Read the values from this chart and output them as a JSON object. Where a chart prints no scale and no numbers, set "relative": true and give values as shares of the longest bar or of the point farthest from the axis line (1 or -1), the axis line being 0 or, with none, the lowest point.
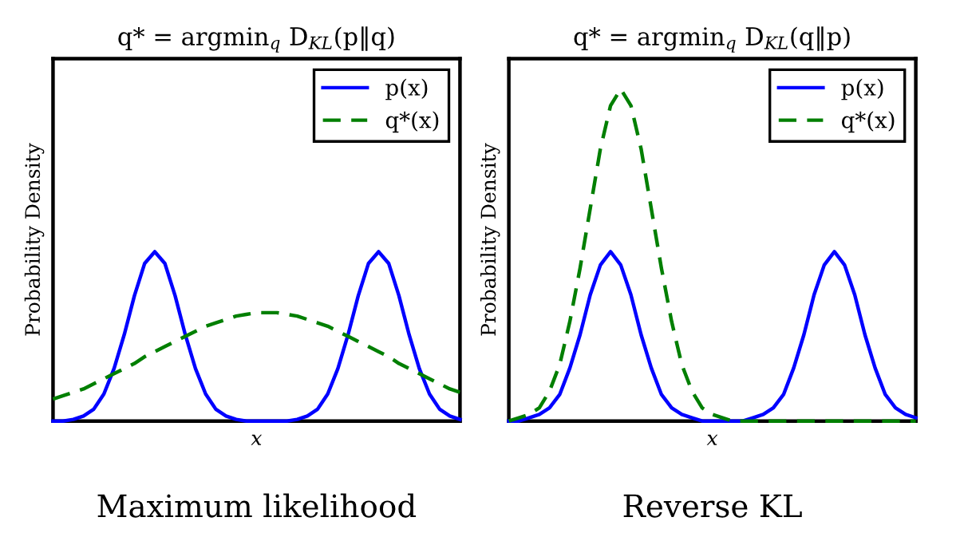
{
  "chart_data": [
    {
      "type": "line",
      "title": "q* = argmin$_{q}$ D$_{KL}$(p‖q)",
      "xlabel": "x",
      "ylabel": "Probability Density",
      "annotations": [
        "Maximum likelihood"
      ],
      "relative": true,
      "legend": "top right",
      "tick_labels": false,
      "categories": [
        null,
        null,
        null,
        null,
        null,
        null,
        null,
        null,
        null,
        null,
        null,
        null,
        null,
        null,
        null,
        null,
        null,
        null,
        null,
        null,
        null,
        null,
        null,
        null,
        null,
        null,
        null,
        null,
        null,
        null,
        null,
        null,
        null,
        null,
        null,
        null,
        null,
        null,
        null,
        null,
        null
      ],
      "series": [
        {
          "name": "p(x)",
          "color": "#0000ff",
          "line_style": "solid",
          "values": [
            0,
            0,
            0.01,
            0.03,
            0.07,
            0.16,
            0.31,
            0.51,
            0.74,
            0.93,
            1,
            0.93,
            0.74,
            0.51,
            0.31,
            0.16,
            0.07,
            0.03,
            0.01,
            0,
            0,
            0,
            0,
            0,
            0.01,
            0.03,
            0.07,
            0.16,
            0.31,
            0.51,
            0.74,
            0.93,
            1,
            0.93,
            0.74,
            0.51,
            0.31,
            0.16,
            0.07,
            0.03,
            0.01
          ]
        },
        {
          "name": "q*(x)",
          "color": "#007f00",
          "line_style": "dashed",
          "values": [
            0.13,
            0.15,
            0.17,
            0.19,
            0.22,
            0.25,
            0.28,
            0.31,
            0.34,
            0.38,
            0.41,
            0.44,
            0.47,
            0.5,
            0.53,
            0.56,
            0.58,
            0.6,
            0.62,
            0.63,
            0.64,
            0.64,
            0.64,
            0.63,
            0.62,
            0.6,
            0.58,
            0.56,
            0.53,
            0.5,
            0.47,
            0.44,
            0.41,
            0.38,
            0.34,
            0.31,
            0.28,
            0.25,
            0.22,
            0.19,
            0.17
          ]
        }
      ]
    },
    {
      "type": "line",
      "title": "q* = argmin$_{q}$ D$_{KL}$(q‖p)",
      "xlabel": "x",
      "ylabel": "Probability Density",
      "annotations": [
        "Reverse KL"
      ],
      "relative": true,
      "legend": "top right",
      "tick_labels": false,
      "categories": [
        null,
        null,
        null,
        null,
        null,
        null,
        null,
        null,
        null,
        null,
        null,
        null,
        null,
        null,
        null,
        null,
        null,
        null,
        null,
        null,
        null,
        null,
        null,
        null,
        null,
        null,
        null,
        null,
        null,
        null,
        null,
        null,
        null,
        null,
        null,
        null,
        null,
        null,
        null,
        null,
        null
      ],
      "series": [
        {
          "name": "p(x)",
          "color": "#0000ff",
          "line_style": "solid",
          "values": [
            0,
            0,
            0.01,
            0.02,
            0.04,
            0.08,
            0.16,
            0.26,
            0.38,
            0.47,
            0.51,
            0.47,
            0.38,
            0.26,
            0.16,
            0.08,
            0.04,
            0.02,
            0.01,
            0,
            0,
            0,
            0,
            0,
            0.01,
            0.02,
            0.04,
            0.08,
            0.16,
            0.26,
            0.38,
            0.47,
            0.51,
            0.47,
            0.38,
            0.26,
            0.16,
            0.08,
            0.04,
            0.02,
            0.01
          ]
        },
        {
          "name": "q*(x)",
          "color": "#007f00",
          "line_style": "dashed",
          "values": [
            0,
            0.01,
            0.02,
            0.04,
            0.09,
            0.17,
            0.3,
            0.46,
            0.64,
            0.82,
            0.95,
            1,
            0.95,
            0.82,
            0.64,
            0.46,
            0.3,
            0.17,
            0.09,
            0.04,
            0.02,
            0.01,
            0,
            0,
            0,
            0,
            0,
            0,
            0,
            0,
            0,
            0,
            0,
            0,
            0,
            0,
            0,
            0,
            0,
            0,
            0
          ]
        }
      ]
    }
  ]
}
